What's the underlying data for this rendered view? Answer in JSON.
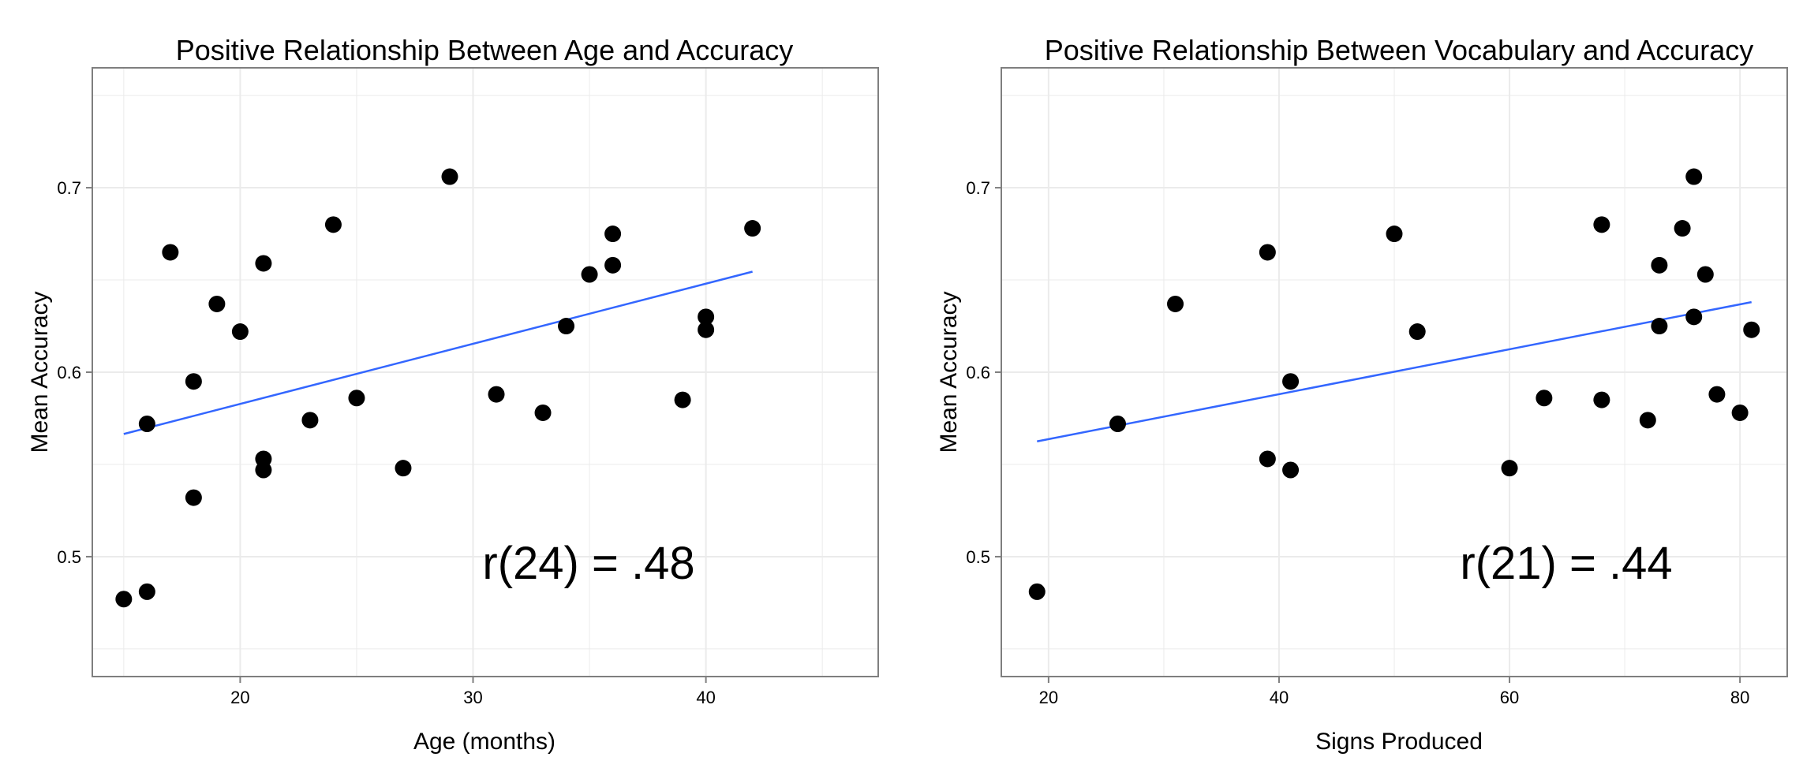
{
  "chart_data": [
    {
      "type": "scatter",
      "title": "Positive Relationship Between Age and Accuracy",
      "xlabel": "Age (months)",
      "ylabel": "Mean Accuracy",
      "xlim": [
        13.65,
        47.4
      ],
      "ylim": [
        0.435,
        0.765
      ],
      "x_ticks": [
        20,
        30,
        40
      ],
      "y_ticks": [
        0.5,
        0.6,
        0.7
      ],
      "x_tick_labels": [
        "20",
        "30",
        "40"
      ],
      "y_tick_labels": [
        "0.5",
        "0.6",
        "0.7"
      ],
      "grid": true,
      "annotation": "r(24) = .48",
      "points": [
        {
          "x": 15,
          "y": 0.477
        },
        {
          "x": 16,
          "y": 0.481
        },
        {
          "x": 16,
          "y": 0.572
        },
        {
          "x": 17,
          "y": 0.665
        },
        {
          "x": 18,
          "y": 0.532
        },
        {
          "x": 18,
          "y": 0.595
        },
        {
          "x": 19,
          "y": 0.637
        },
        {
          "x": 20,
          "y": 0.622
        },
        {
          "x": 21,
          "y": 0.659
        },
        {
          "x": 21,
          "y": 0.553
        },
        {
          "x": 21,
          "y": 0.547
        },
        {
          "x": 23,
          "y": 0.574
        },
        {
          "x": 24,
          "y": 0.68
        },
        {
          "x": 25,
          "y": 0.586
        },
        {
          "x": 27,
          "y": 0.548
        },
        {
          "x": 29,
          "y": 0.706
        },
        {
          "x": 31,
          "y": 0.588
        },
        {
          "x": 33,
          "y": 0.578
        },
        {
          "x": 34,
          "y": 0.625
        },
        {
          "x": 35,
          "y": 0.653
        },
        {
          "x": 36,
          "y": 0.675
        },
        {
          "x": 36,
          "y": 0.658
        },
        {
          "x": 39,
          "y": 0.585
        },
        {
          "x": 40,
          "y": 0.63
        },
        {
          "x": 40,
          "y": 0.623
        },
        {
          "x": 42,
          "y": 0.678
        }
      ],
      "trend_line": {
        "x": [
          15,
          42
        ],
        "y": [
          0.5665,
          0.6545
        ]
      },
      "point_color": "#000000",
      "line_color": "#3366FF",
      "panel_border_color": "#7f7f7f",
      "grid_color": "#ebebeb"
    },
    {
      "type": "scatter",
      "title": "Positive Relationship Between Vocabulary and Accuracy",
      "xlabel": "Signs Produced",
      "ylabel": "Mean Accuracy",
      "xlim": [
        15.9,
        84.1
      ],
      "ylim": [
        0.435,
        0.765
      ],
      "x_ticks": [
        20,
        40,
        60,
        80
      ],
      "y_ticks": [
        0.5,
        0.6,
        0.7
      ],
      "x_tick_labels": [
        "20",
        "40",
        "60",
        "80"
      ],
      "y_tick_labels": [
        "0.5",
        "0.6",
        "0.7"
      ],
      "grid": true,
      "annotation": "r(21) = .44",
      "points": [
        {
          "x": 19,
          "y": 0.481
        },
        {
          "x": 26,
          "y": 0.572
        },
        {
          "x": 31,
          "y": 0.637
        },
        {
          "x": 39,
          "y": 0.665
        },
        {
          "x": 39,
          "y": 0.553
        },
        {
          "x": 41,
          "y": 0.595
        },
        {
          "x": 41,
          "y": 0.547
        },
        {
          "x": 50,
          "y": 0.675
        },
        {
          "x": 52,
          "y": 0.622
        },
        {
          "x": 60,
          "y": 0.548
        },
        {
          "x": 63,
          "y": 0.586
        },
        {
          "x": 68,
          "y": 0.68
        },
        {
          "x": 68,
          "y": 0.585
        },
        {
          "x": 72,
          "y": 0.574
        },
        {
          "x": 73,
          "y": 0.658
        },
        {
          "x": 73,
          "y": 0.625
        },
        {
          "x": 75,
          "y": 0.678
        },
        {
          "x": 76,
          "y": 0.706
        },
        {
          "x": 76,
          "y": 0.63
        },
        {
          "x": 77,
          "y": 0.653
        },
        {
          "x": 78,
          "y": 0.588
        },
        {
          "x": 80,
          "y": 0.578
        },
        {
          "x": 81,
          "y": 0.623
        }
      ],
      "trend_line": {
        "x": [
          19,
          81
        ],
        "y": [
          0.5625,
          0.638
        ]
      },
      "point_color": "#000000",
      "line_color": "#3366FF",
      "panel_border_color": "#7f7f7f",
      "grid_color": "#ebebeb"
    }
  ]
}
